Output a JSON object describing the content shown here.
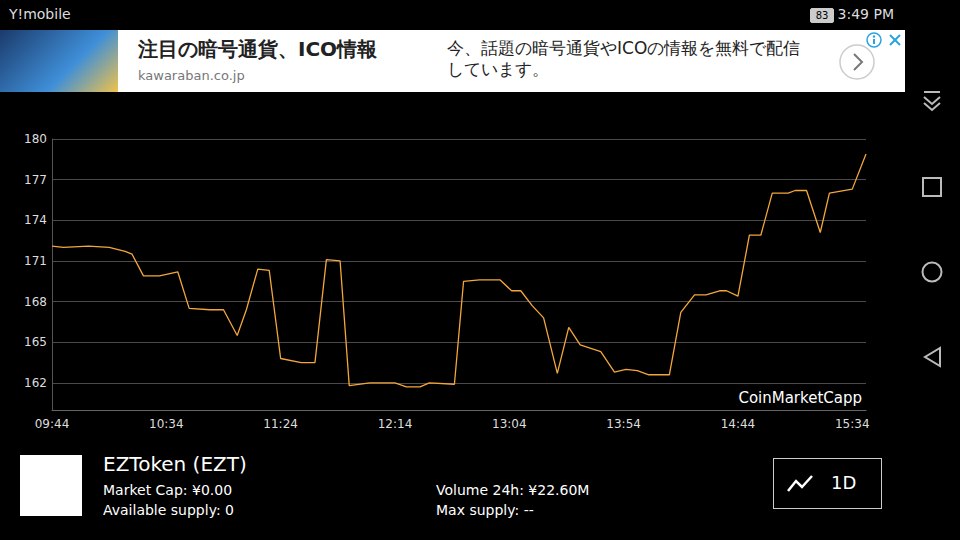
{
  "status_bar": {
    "carrier": "Y!mobile",
    "battery": "83",
    "time": "3:49 PM"
  },
  "ad": {
    "title": "注目の暗号通貨、ICO情報",
    "domain": "kawaraban.co.jp",
    "text": "今、話題の暗号通貨やICOの情報を無料で配信しています。"
  },
  "chart_data": {
    "type": "line",
    "color": "#f3a73b",
    "grid": true,
    "annotations": [
      "CoinMarketCapp"
    ],
    "x": [
      584,
      589,
      600,
      609,
      616,
      619,
      624,
      631,
      639,
      644,
      653,
      659,
      665,
      669,
      674,
      679,
      684,
      693,
      699,
      704,
      710,
      714,
      723,
      734,
      739,
      745,
      749,
      760,
      764,
      771,
      780,
      785,
      789,
      794,
      799,
      805,
      810,
      815,
      824,
      830,
      835,
      840,
      845,
      854,
      859,
      865,
      870,
      876,
      879,
      884,
      889,
      894,
      899,
      906,
      909,
      914,
      920,
      924,
      934,
      940
    ],
    "values": [
      172.1,
      172.0,
      172.1,
      172.0,
      171.7,
      171.5,
      169.9,
      169.9,
      170.2,
      167.5,
      167.4,
      167.4,
      165.5,
      167.4,
      170.4,
      170.3,
      163.8,
      163.5,
      163.5,
      171.1,
      171.0,
      161.8,
      162.0,
      162.0,
      161.7,
      161.7,
      162.0,
      161.9,
      169.5,
      169.6,
      169.6,
      168.8,
      168.8,
      167.7,
      166.8,
      162.7,
      166.1,
      164.8,
      164.3,
      162.8,
      163.0,
      162.9,
      162.6,
      162.6,
      167.2,
      168.5,
      168.5,
      168.8,
      168.8,
      168.4,
      172.9,
      172.9,
      176.0,
      176.0,
      176.2,
      176.2,
      173.1,
      176.0,
      176.3,
      178.9
    ],
    "xlim": [
      584,
      940
    ],
    "xticks": [
      {
        "value": 584,
        "label": "09:44"
      },
      {
        "value": 634,
        "label": "10:34"
      },
      {
        "value": 684,
        "label": "11:24"
      },
      {
        "value": 734,
        "label": "12:14"
      },
      {
        "value": 784,
        "label": "13:04"
      },
      {
        "value": 834,
        "label": "13:54"
      },
      {
        "value": 884,
        "label": "14:44"
      },
      {
        "value": 934,
        "label": "15:34"
      }
    ],
    "ylim": [
      160,
      180
    ],
    "yticks": [
      162,
      165,
      168,
      171,
      174,
      177,
      180
    ]
  },
  "coin": {
    "name": "EZToken (EZT)",
    "market_cap": "Market Cap: ¥0.00",
    "available_supply": "Available supply: 0",
    "volume": "Volume 24h: ¥22.60M",
    "max_supply": "Max supply: --"
  },
  "range_button": "1D"
}
